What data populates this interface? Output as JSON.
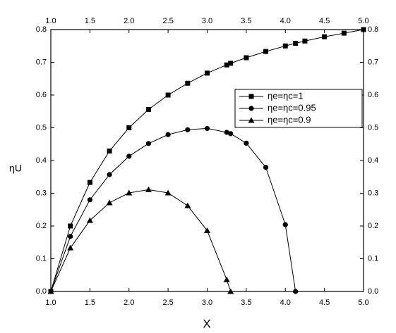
{
  "chart_data": {
    "type": "line",
    "xlabel": "X",
    "ylabel": "ηU",
    "xlim": [
      1.0,
      5.0
    ],
    "xticks": [
      {
        "value": 1.0,
        "label": "1.0"
      },
      1.5,
      {
        "value": 2.0,
        "label": "2.0"
      },
      2.5,
      {
        "value": 3.0,
        "label": "3.0"
      },
      3.5,
      {
        "value": 4.0,
        "label": "4.0"
      },
      4.5,
      {
        "value": 5.0,
        "label": "5.0"
      }
    ],
    "ylim": [
      0,
      0.8
    ],
    "yticks": [
      {
        "value": 0,
        "label": "0.0"
      },
      0.1,
      0.2,
      0.3,
      0.4,
      0.5,
      0.6,
      0.7,
      0.8
    ],
    "legend": "upper right",
    "series": [
      {
        "name": "ηe=ηc=1",
        "color": "#000000",
        "marker": "square",
        "x": [
          1.0,
          1.25,
          1.5,
          1.75,
          2.0,
          2.25,
          2.5,
          2.75,
          3.0,
          3.25,
          3.3,
          3.5,
          3.75,
          4.0,
          4.13,
          4.25,
          4.5,
          4.75,
          5.0
        ],
        "values": [
          0,
          0.2,
          0.333,
          0.429,
          0.5,
          0.556,
          0.6,
          0.636,
          0.667,
          0.692,
          0.697,
          0.714,
          0.733,
          0.75,
          0.758,
          0.765,
          0.778,
          0.789,
          0.8
        ]
      },
      {
        "name": "ηe=ηc=0.95",
        "color": "#000000",
        "marker": "circle",
        "x": [
          1.0,
          1.25,
          1.5,
          1.75,
          2.0,
          2.25,
          2.5,
          2.75,
          3.0,
          3.25,
          3.3,
          3.5,
          3.75,
          4.0,
          4.13
        ],
        "values": [
          0,
          0.168,
          0.28,
          0.357,
          0.413,
          0.452,
          0.479,
          0.494,
          0.498,
          0.486,
          0.482,
          0.453,
          0.379,
          0.204,
          0
        ]
      },
      {
        "name": "ηe=ηc=0.9",
        "color": "#000000",
        "marker": "triangle",
        "x": [
          1.0,
          1.25,
          1.5,
          1.75,
          2.0,
          2.25,
          2.5,
          2.75,
          3.0,
          3.25,
          3.3
        ],
        "values": [
          0,
          0.133,
          0.217,
          0.271,
          0.301,
          0.311,
          0.301,
          0.262,
          0.186,
          0.036,
          0
        ]
      }
    ]
  }
}
